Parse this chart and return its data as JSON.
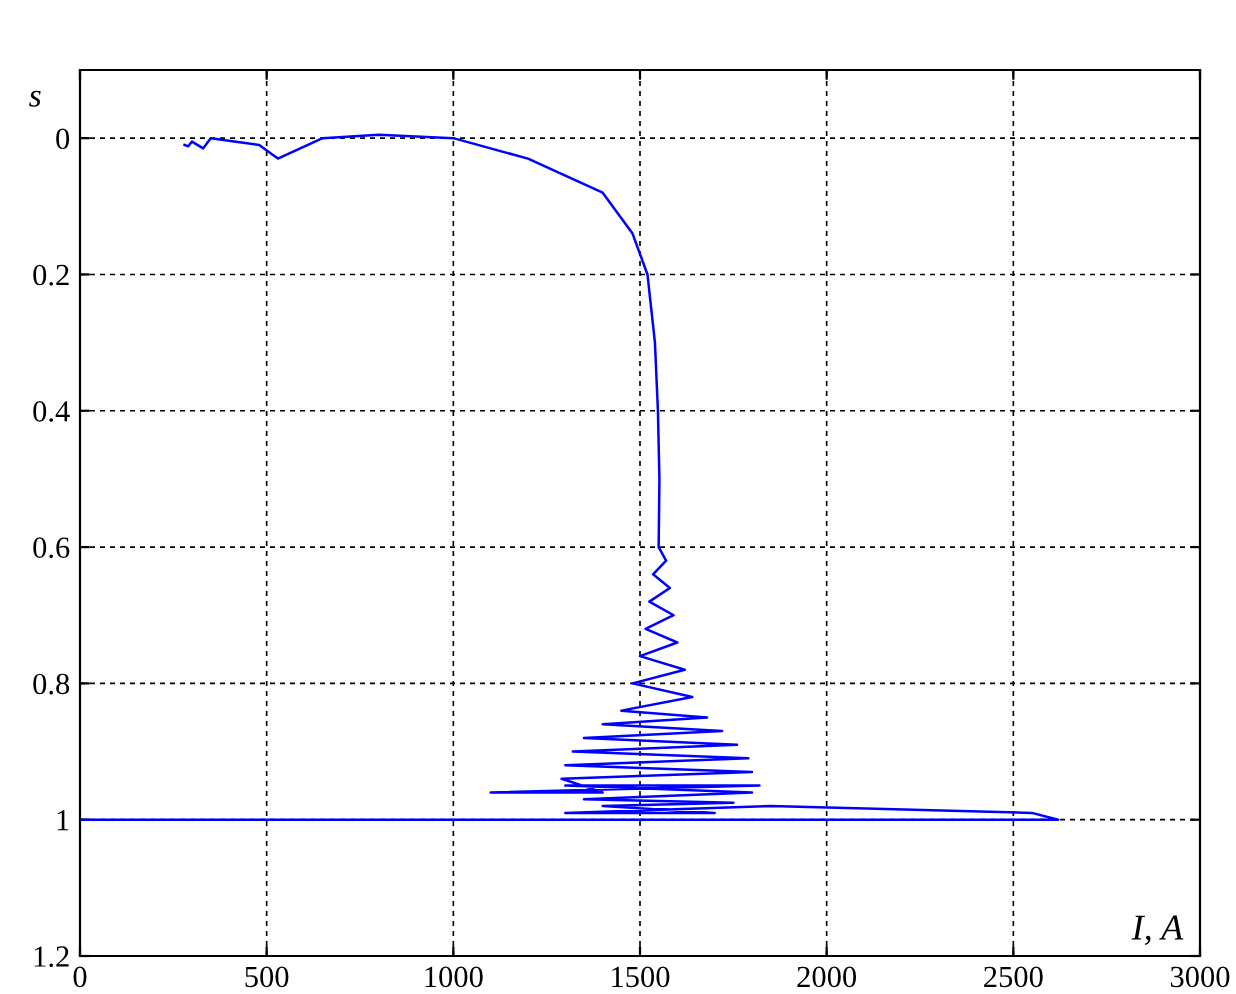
{
  "chart_data": {
    "type": "line",
    "xlabel": "I, A",
    "ylabel": "s",
    "xlim": [
      0,
      3000
    ],
    "xticks": [
      0,
      500,
      1000,
      1500,
      2000,
      2500,
      3000
    ],
    "ylim": [
      1.2,
      -0.1
    ],
    "yticks": [
      0,
      0.2,
      0.4,
      0.6,
      0.8,
      1,
      1.2
    ],
    "grid": true,
    "legend": false,
    "marker": "none",
    "line_style": "solid",
    "series": [
      {
        "color": "#0000ff",
        "x": [
          0,
          2620,
          2550,
          1850,
          1300,
          1700,
          1400,
          1750,
          1350,
          1800,
          1300,
          1820,
          1100,
          1400,
          1290,
          1800,
          1300,
          1790,
          1320,
          1760,
          1350,
          1720,
          1400,
          1680,
          1450,
          1640,
          1480,
          1620,
          1500,
          1600,
          1515,
          1590,
          1525,
          1580,
          1535,
          1570,
          1550,
          1552,
          1548,
          1540,
          1520,
          1480,
          1400,
          1200,
          1000,
          800,
          650,
          530,
          480,
          350,
          330,
          300,
          290,
          280
        ],
        "values": [
          1.0,
          1.0,
          0.99,
          0.98,
          0.99,
          0.99,
          0.98,
          0.975,
          0.97,
          0.96,
          0.95,
          0.95,
          0.96,
          0.96,
          0.94,
          0.93,
          0.92,
          0.91,
          0.9,
          0.89,
          0.88,
          0.87,
          0.86,
          0.85,
          0.84,
          0.82,
          0.8,
          0.78,
          0.76,
          0.74,
          0.72,
          0.7,
          0.68,
          0.66,
          0.64,
          0.62,
          0.6,
          0.5,
          0.4,
          0.3,
          0.2,
          0.14,
          0.08,
          0.03,
          0.0,
          -0.005,
          0.0,
          0.03,
          0.01,
          0.0,
          0.015,
          0.005,
          0.012,
          0.01
        ]
      }
    ]
  }
}
